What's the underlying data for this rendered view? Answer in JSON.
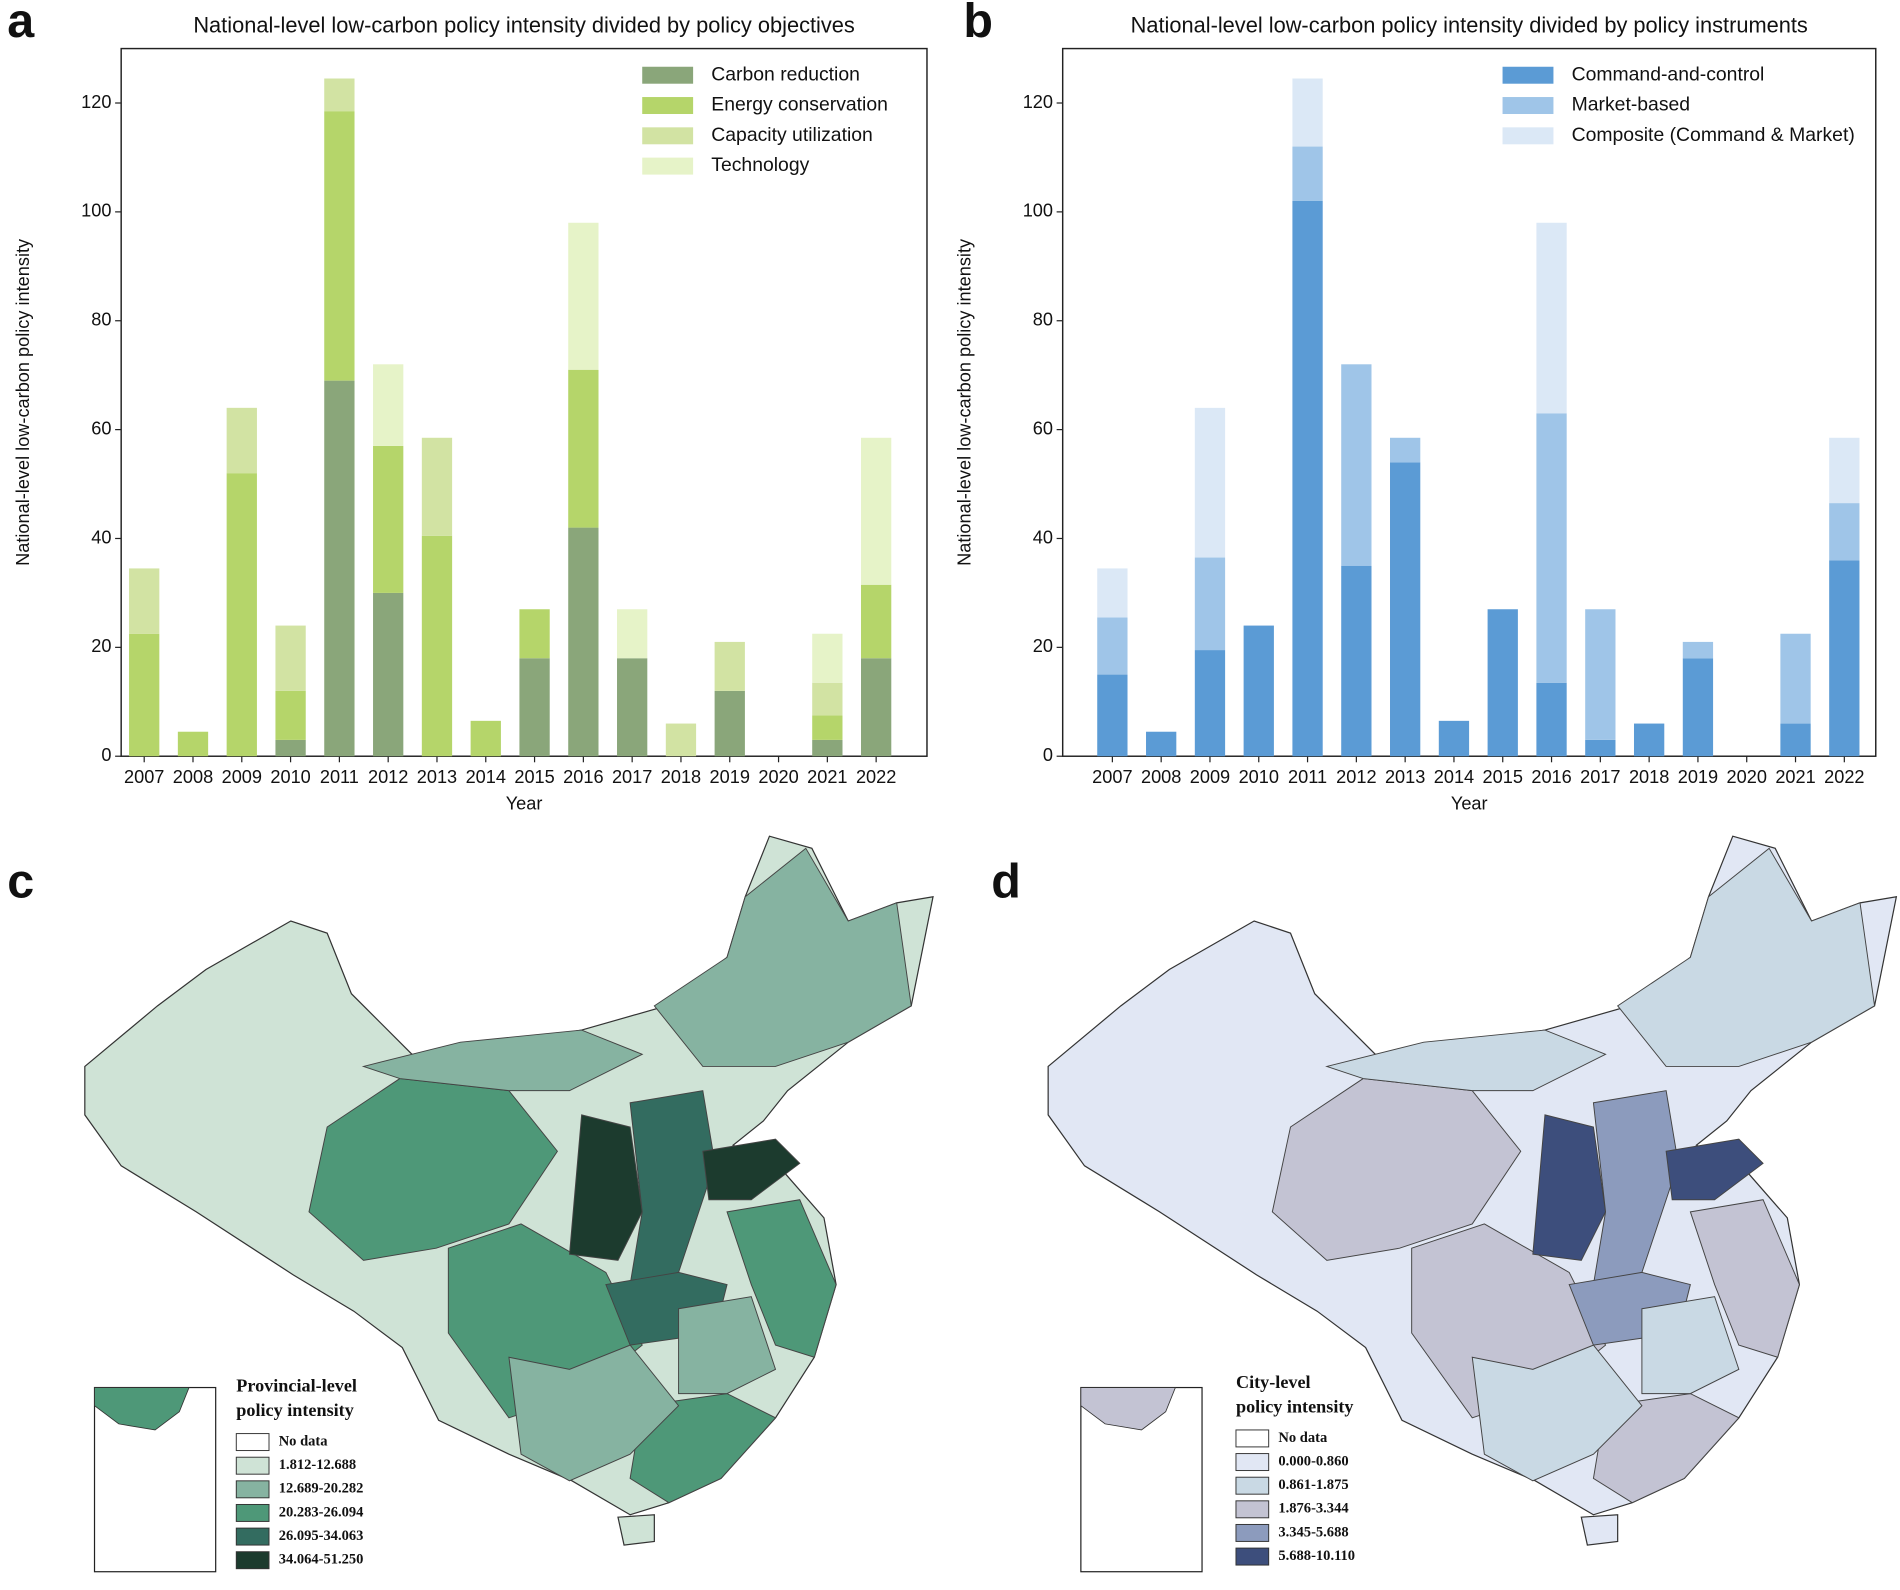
{
  "chart_data": [
    {
      "type": "bar",
      "panel": "a",
      "title": "National-level low-carbon policy intensity divided by policy objectives",
      "xlabel": "Year",
      "ylabel": "National-level low-carbon policy intensity",
      "categories": [
        "2007",
        "2008",
        "2009",
        "2010",
        "2011",
        "2012",
        "2013",
        "2014",
        "2015",
        "2016",
        "2017",
        "2018",
        "2019",
        "2020",
        "2021",
        "2022"
      ],
      "stacked": true,
      "ylim": [
        0,
        130
      ],
      "yticks": [
        0,
        20,
        40,
        60,
        80,
        100,
        120
      ],
      "series": [
        {
          "name": "Carbon reduction",
          "color": "#8aa67a",
          "values": [
            0,
            0,
            0,
            3,
            69,
            30,
            0,
            0,
            18,
            42,
            18,
            0,
            12,
            0,
            3,
            18
          ]
        },
        {
          "name": "Energy conservation",
          "color": "#b5d56a",
          "values": [
            22.5,
            4.5,
            52,
            9,
            49.5,
            27,
            40.5,
            6.5,
            9,
            29,
            0,
            0,
            0,
            0,
            4.5,
            13.5
          ]
        },
        {
          "name": "Capacity utilization",
          "color": "#d2e3a3",
          "values": [
            12,
            0,
            12,
            12,
            6,
            0,
            18,
            0,
            0,
            0,
            0,
            6,
            9,
            0,
            6,
            0
          ]
        },
        {
          "name": "Technology",
          "color": "#e6f3c8",
          "values": [
            0,
            0,
            0,
            0,
            0,
            15,
            0,
            0,
            0,
            27,
            9,
            0,
            0,
            0,
            9,
            27
          ]
        }
      ]
    },
    {
      "type": "bar",
      "panel": "b",
      "title": "National-level low-carbon policy intensity divided by policy instruments",
      "xlabel": "Year",
      "ylabel": "National-level low-carbon policy intensity",
      "categories": [
        "2007",
        "2008",
        "2009",
        "2010",
        "2011",
        "2012",
        "2013",
        "2014",
        "2015",
        "2016",
        "2017",
        "2018",
        "2019",
        "2020",
        "2021",
        "2022"
      ],
      "stacked": true,
      "ylim": [
        0,
        130
      ],
      "yticks": [
        0,
        20,
        40,
        60,
        80,
        100,
        120
      ],
      "series": [
        {
          "name": "Command-and-control",
          "color": "#5b9bd5",
          "values": [
            15,
            4.5,
            19.5,
            24,
            102,
            35,
            54,
            6.5,
            27,
            13.5,
            3,
            6,
            18,
            0,
            6,
            36
          ]
        },
        {
          "name": "Market-based",
          "color": "#9fc5e8",
          "values": [
            10.5,
            0,
            17,
            0,
            10,
            37,
            4.5,
            0,
            0,
            49.5,
            24,
            0,
            3,
            0,
            16.5,
            10.5
          ]
        },
        {
          "name": "Composite (Command & Market)",
          "color": "#dbe8f6",
          "values": [
            9,
            0,
            27.5,
            0,
            12.5,
            0,
            0,
            0,
            0,
            35,
            0,
            0,
            0,
            0,
            0,
            12
          ]
        }
      ]
    },
    {
      "type": "map",
      "panel": "c",
      "legend_title": [
        "Provincial-level",
        "policy intensity"
      ],
      "legend": [
        {
          "label": "No data",
          "color": "#ffffff"
        },
        {
          "label": "1.812-12.688",
          "color": "#cfe3d6"
        },
        {
          "label": "12.689-20.282",
          "color": "#86b3a1"
        },
        {
          "label": "20.283-26.094",
          "color": "#4e9878"
        },
        {
          "label": "26.095-34.063",
          "color": "#336c60"
        },
        {
          "label": "34.064-51.250",
          "color": "#1c3b2e"
        }
      ]
    },
    {
      "type": "map",
      "panel": "d",
      "legend_title": [
        "City-level",
        "policy intensity"
      ],
      "legend": [
        {
          "label": "No data",
          "color": "#ffffff"
        },
        {
          "label": "0.000-0.860",
          "color": "#e1e7f4"
        },
        {
          "label": "0.861-1.875",
          "color": "#c9d9e4"
        },
        {
          "label": "1.876-3.344",
          "color": "#c3c3d3"
        },
        {
          "label": "3.345-5.688",
          "color": "#8c9bbd"
        },
        {
          "label": "5.688-10.110",
          "color": "#3d4e7c"
        }
      ]
    }
  ]
}
